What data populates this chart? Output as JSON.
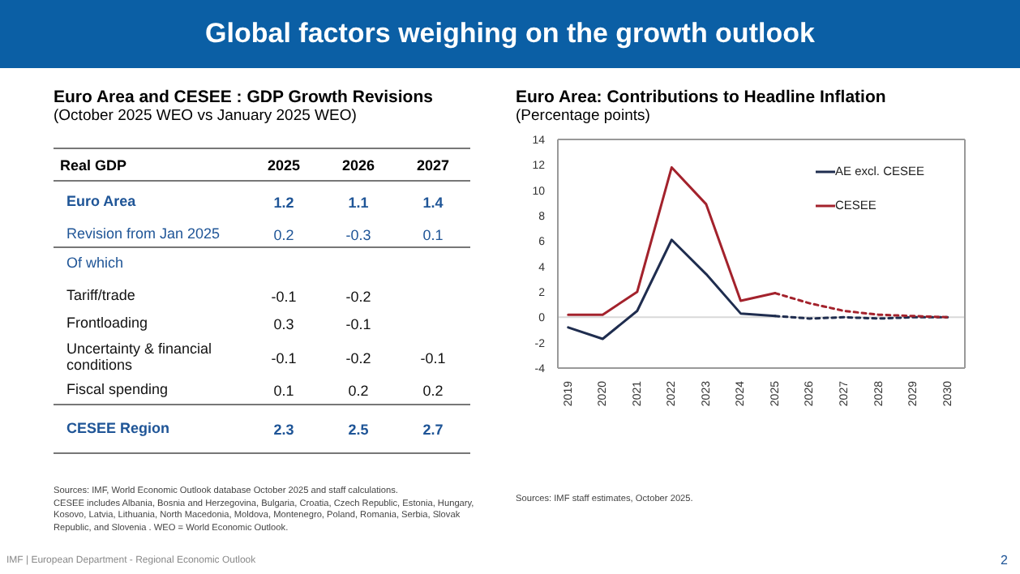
{
  "chart_data": [
    {
      "type": "other",
      "title": "Global factors weighing on the growth outlook",
      "annotations": [
        "IMF | European Department - Regional Economic Outlook",
        "2"
      ]
    },
    {
      "type": "heatmap",
      "title": "Euro Area and CESEE : GDP Growth Revisions",
      "subtitle": "(October 2025 WEO vs January 2025 WEO)",
      "ylabel": "Real GDP",
      "categories": [
        "2025",
        "2026",
        "2027"
      ],
      "y_categories": [
        "Euro Area",
        "Revision from Jan 2025",
        "Of which",
        "Tariff/trade",
        "Frontloading",
        "Uncertainty & financial conditions",
        "Fiscal spending",
        "CESEE Region"
      ],
      "cells": [
        [
          1.2,
          1.1,
          1.4
        ],
        [
          0.2,
          -0.3,
          0.1
        ],
        [
          null,
          null,
          null
        ],
        [
          -0.1,
          -0.2,
          null
        ],
        [
          0.3,
          -0.1,
          null
        ],
        [
          -0.1,
          -0.2,
          -0.1
        ],
        [
          0.1,
          0.2,
          0.2
        ],
        [
          2.3,
          2.5,
          2.7
        ]
      ],
      "data_labels": true,
      "annotations": [
        "Sources: IMF, World Economic Outlook database October 2025 and staff calculations.",
        "CESEE includes Albania, Bosnia and Herzegovina, Bulgaria, Croatia, Czech Republic, Estonia, Hungary, Kosovo, Latvia, Lithuania, North Macedonia, Moldova, Montenegro, Poland, Romania, Serbia, Slovak Republic, and Slovenia . WEO = World Economic Outlook."
      ]
    },
    {
      "type": "line",
      "title": "Euro Area: Contributions to Headline Inflation",
      "subtitle": "(Percentage points)",
      "x": [
        2019,
        2020,
        2021,
        2022,
        2023,
        2024,
        2025,
        2026,
        2027,
        2028,
        2029,
        2030
      ],
      "series": [
        {
          "name": "AE excl. CESEE",
          "color": "#1f2d4f",
          "line_style": "solid",
          "values": [
            -0.8,
            -1.7,
            0.5,
            6.1,
            3.4,
            0.3,
            0.1,
            null,
            null,
            null,
            null,
            null
          ]
        },
        {
          "name": "CESEE",
          "color": "#a3222c",
          "line_style": "solid",
          "values": [
            0.2,
            0.2,
            2.0,
            11.8,
            8.9,
            1.3,
            1.9,
            null,
            null,
            null,
            null,
            null
          ]
        },
        {
          "color": "#1f2d4f",
          "line_style": "dashed",
          "values": [
            null,
            null,
            null,
            null,
            null,
            null,
            0.1,
            -0.1,
            0.0,
            -0.1,
            0.0,
            0.0
          ]
        },
        {
          "color": "#a3222c",
          "line_style": "dashed",
          "values": [
            null,
            null,
            null,
            null,
            null,
            null,
            1.9,
            1.1,
            0.5,
            0.2,
            0.1,
            0.0
          ]
        }
      ],
      "xlim": [
        2018.7,
        2030.5
      ],
      "xticks": [
        2019,
        2020,
        2021,
        2022,
        2023,
        2024,
        2025,
        2026,
        2027,
        2028,
        2029,
        2030
      ],
      "ylim": [
        -4,
        14
      ],
      "yticks": [
        -4,
        -2,
        0,
        2,
        4,
        6,
        8,
        10,
        12,
        14
      ],
      "ref_lines": [
        {
          "axis": "y",
          "value": 0,
          "color": "#d9d9d9"
        }
      ],
      "legend": "top right",
      "grid": false,
      "marker": "none",
      "annotations": [
        "Sources: IMF staff estimates, October 2025."
      ]
    }
  ]
}
